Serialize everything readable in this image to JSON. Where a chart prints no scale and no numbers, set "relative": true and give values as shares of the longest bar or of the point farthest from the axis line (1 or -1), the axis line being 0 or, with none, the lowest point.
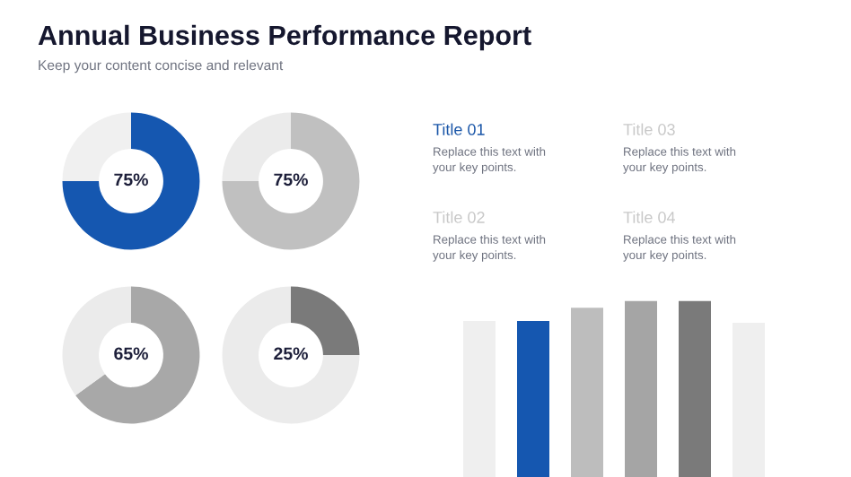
{
  "chart_data": [
    {
      "type": "donut",
      "title": "Annual Business Performance Report",
      "subtitle": "Keep your content concise and relevant",
      "categories": [
        null,
        null
      ],
      "values": [
        75,
        25
      ],
      "colors": [
        "#1557b0",
        "#f0f0f0"
      ],
      "value_labels": [
        "75%",
        null
      ]
    },
    {
      "type": "donut",
      "categories": [
        null,
        null
      ],
      "values": [
        75,
        25
      ],
      "colors": [
        "#c0c0c0",
        "#ebebeb"
      ],
      "value_labels": [
        "75%",
        null
      ]
    },
    {
      "type": "donut",
      "categories": [
        null,
        null
      ],
      "values": [
        65,
        35
      ],
      "colors": [
        "#a8a8a8",
        "#ebebeb"
      ],
      "value_labels": [
        "65%",
        null
      ]
    },
    {
      "type": "donut",
      "categories": [
        null,
        null
      ],
      "values": [
        25,
        75
      ],
      "colors": [
        "#7a7a7a",
        "#ebebeb"
      ],
      "value_labels": [
        "25%",
        null
      ]
    },
    {
      "type": "other",
      "annotations": [
        "Title 01",
        "Replace this text with\nyour key points.",
        "Title 03",
        "Replace this text with\nyour key points.",
        "Title 02",
        "Replace this text with\nyour key points.",
        "Title 04",
        "Replace this text with\nyour key points."
      ],
      "colors": [
        "#1a56a8",
        "#6f7380",
        "#c8c8c8",
        "#6f7380",
        "#c8c8c8",
        "#6f7380",
        "#c8c8c8",
        "#6f7380"
      ]
    },
    {
      "type": "bar",
      "relative": true,
      "categories": [
        null,
        null,
        null,
        null,
        null,
        null
      ],
      "values": [
        0.885,
        0.885,
        0.96,
        1,
        1,
        0.875
      ],
      "colors": [
        "#efefef",
        "#1557b0",
        "#bdbdbd",
        "#a5a5a5",
        "#7a7a7a",
        "#efefef"
      ]
    }
  ]
}
